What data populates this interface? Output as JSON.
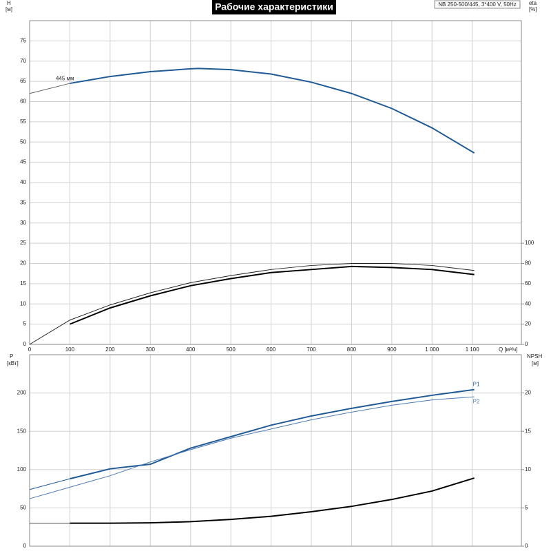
{
  "chart_data": [
    {
      "type": "line",
      "title": "Рабочие характеристики",
      "subtitle": "NB 250-500/445, 3*400 V, 50Hz",
      "y_label": "H",
      "y_unit": "[м]",
      "y2_label": "eta",
      "y2_unit": "[%]",
      "x_label": "Q [м³/ч]",
      "annotation": "445 мм",
      "grid": true,
      "xlim": [
        0,
        1222
      ],
      "xticks": [
        0,
        100,
        200,
        300,
        400,
        500,
        600,
        700,
        800,
        900,
        {
          "value": 1000,
          "label": "1 000"
        },
        {
          "value": 1100,
          "label": "1 100"
        }
      ],
      "ylim": [
        0,
        80
      ],
      "yticks": [
        0,
        5,
        10,
        15,
        20,
        25,
        30,
        35,
        40,
        45,
        50,
        55,
        60,
        65,
        70,
        75
      ],
      "y2lim": [
        0,
        320
      ],
      "y2ticks": [
        0,
        20,
        40,
        60,
        80,
        100
      ],
      "series": [
        {
          "color": "#666666",
          "width": 1,
          "x": [
            0,
            100
          ],
          "values": [
            62,
            64.5
          ]
        },
        {
          "color": "#1f5a96",
          "width": 2,
          "x": [
            100,
            200,
            300,
            400,
            420,
            500,
            600,
            700,
            800,
            900,
            1000,
            1105
          ],
          "values": [
            64.5,
            66.2,
            67.4,
            68.1,
            68.2,
            67.9,
            66.8,
            64.8,
            62,
            58.3,
            53.5,
            47.3
          ]
        },
        {
          "color": "#222222",
          "width": 1,
          "axis": "y2",
          "x": [
            0,
            100,
            200,
            300,
            400,
            500,
            600,
            700,
            800,
            900,
            1000,
            1105
          ],
          "values": [
            0,
            24,
            39,
            51,
            61,
            68,
            74,
            78,
            80,
            80,
            78,
            73
          ]
        },
        {
          "color": "#000000",
          "width": 2,
          "axis": "y2",
          "x": [
            100,
            200,
            300,
            400,
            500,
            600,
            700,
            800,
            900,
            1000,
            1105
          ],
          "values": [
            20,
            36,
            48,
            58,
            65,
            71,
            74,
            77,
            76,
            74,
            69
          ]
        }
      ]
    },
    {
      "type": "line",
      "y_label": "P",
      "y_unit": "[кВт]",
      "y2_label": "NPSH",
      "y2_unit": "[м]",
      "grid": true,
      "xlim": [
        0,
        1222
      ],
      "ylim": [
        0,
        250
      ],
      "yticks": [
        0,
        50,
        100,
        150,
        200
      ],
      "y2lim": [
        0,
        25
      ],
      "y2ticks": [
        0,
        5,
        10,
        15,
        20
      ],
      "series": [
        {
          "color": "#1f5a96",
          "width": 1,
          "x": [
            0,
            100
          ],
          "values": [
            74,
            88
          ]
        },
        {
          "name": "P1",
          "color": "#1f5a96",
          "width": 2,
          "x": [
            100,
            200,
            300,
            400,
            500,
            600,
            700,
            800,
            900,
            1000,
            1105
          ],
          "values": [
            88,
            101,
            107,
            128,
            143,
            158,
            170,
            180,
            189,
            197,
            204.5
          ]
        },
        {
          "name": "P2",
          "color": "#4a78b0",
          "width": 1,
          "x": [
            0,
            100,
            200,
            300,
            400,
            500,
            600,
            700,
            800,
            900,
            1000,
            1105
          ],
          "values": [
            62,
            77,
            92,
            110,
            126,
            141,
            153,
            165,
            175,
            184,
            191,
            195
          ]
        },
        {
          "color": "#444444",
          "width": 1,
          "axis": "y2",
          "x": [
            0,
            100
          ],
          "values": [
            3,
            3
          ]
        },
        {
          "color": "#000000",
          "width": 2,
          "axis": "y2",
          "x": [
            100,
            200,
            300,
            400,
            500,
            600,
            700,
            800,
            900,
            1000,
            1105
          ],
          "values": [
            3,
            3,
            3.05,
            3.2,
            3.5,
            3.9,
            4.5,
            5.2,
            6.1,
            7.2,
            8.9
          ]
        }
      ]
    }
  ]
}
